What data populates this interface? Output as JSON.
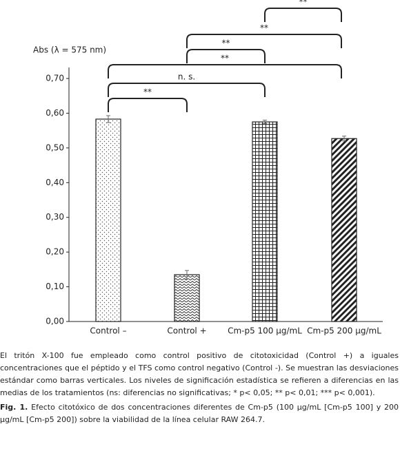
{
  "chart_data": {
    "type": "bar",
    "y_label": "Abs (λ = 575 nm)",
    "categories": [
      "Control –",
      "Control  +",
      "Cm-p5 100 μg/mL",
      "Cm-p5 200 μg/mL"
    ],
    "values": [
      0.583,
      0.135,
      0.575,
      0.527
    ],
    "errors": [
      0.01,
      0.012,
      0.005,
      0.007
    ],
    "ylim": [
      0,
      0.7
    ],
    "yticks": [
      {
        "value": 0,
        "label": "0,00"
      },
      {
        "value": 0.1,
        "label": "0,10"
      },
      {
        "value": 0.2,
        "label": "0,20"
      },
      {
        "value": 0.3,
        "label": "0,30"
      },
      {
        "value": 0.4,
        "label": "0,40"
      },
      {
        "value": 0.5,
        "label": "0,50"
      },
      {
        "value": 0.6,
        "label": "0,60"
      },
      {
        "value": 0.7,
        "label": "0,70"
      }
    ],
    "annotations": [
      "**",
      "n. s.",
      "**",
      "**",
      "**",
      "**"
    ]
  },
  "note": "El tritón X-100 fue empleado como control positivo de citotoxicidad (Control +) a iguales concentraciones que el péptido  y el TFS como control negativo (Control -). Se muestran las desviaciones estándar como barras verticales. Los niveles de significación estadística se refieren a diferencias en las medias de los tratamientos (ns: diferencias no significativas; * p< 0,05; ** p< 0,01; *** p< 0,001).",
  "caption_label": "Fig. 1.",
  "caption_text": "Efecto citotóxico de dos concentraciones diferentes de Cm-p5 (100 μg/mL [Cm-p5 100] y 200 μg/mL [Cm-p5 200]) sobre la viabilidad de la línea celular RAW 264.7."
}
